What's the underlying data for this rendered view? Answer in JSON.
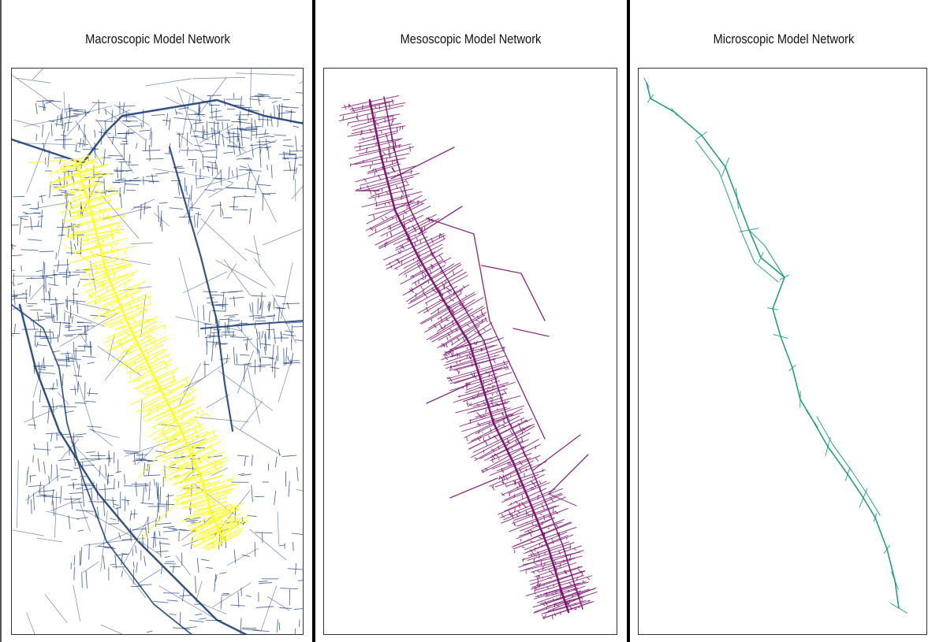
{
  "panels": [
    {
      "title": "Macroscopic Model Network",
      "network_color": "#1f3f7a",
      "highlight_color": "#ffff1a"
    },
    {
      "title": "Mesoscopic Model Network",
      "network_color": "#7a0f6e"
    },
    {
      "title": "Microscopic Model Network",
      "network_color": "#1a9a80"
    }
  ]
}
